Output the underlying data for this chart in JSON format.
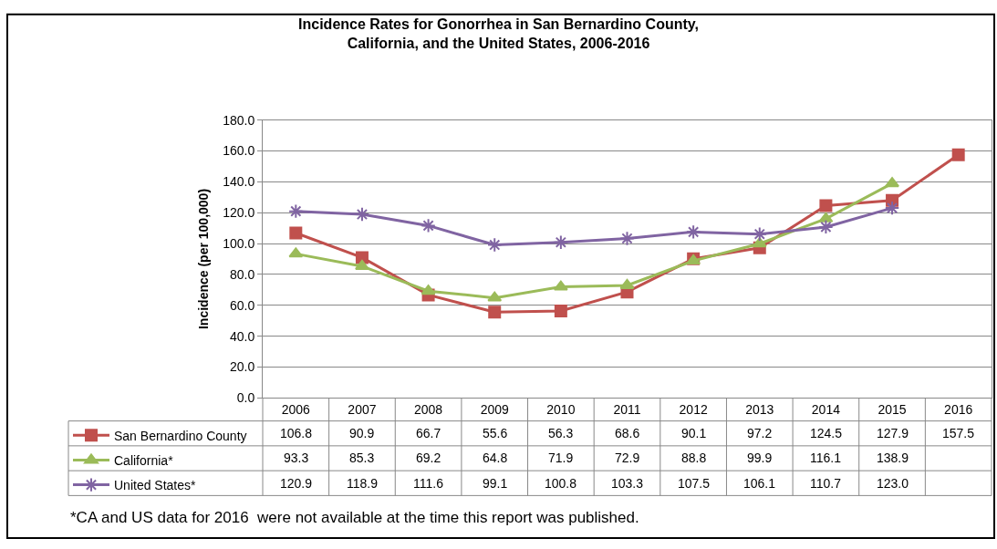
{
  "chart_data": {
    "type": "line",
    "title": "Incidence Rates for Gonorrhea in San Bernardino County,\nCalifornia, and the United States, 2006-2016",
    "ylabel": "Incidence (per 100,000)",
    "categories": [
      "2006",
      "2007",
      "2008",
      "2009",
      "2010",
      "2011",
      "2012",
      "2013",
      "2014",
      "2015",
      "2016"
    ],
    "series": [
      {
        "name": "San Bernardino County",
        "color": "#c0504d",
        "marker": "square",
        "values": [
          106.8,
          90.9,
          66.7,
          55.6,
          56.3,
          68.6,
          90.1,
          97.2,
          124.5,
          127.9,
          157.5
        ],
        "value_labels": [
          "106.8",
          "90.9",
          "66.7",
          "55.6",
          "56.3",
          "68.6",
          "90.1",
          "97.2",
          "124.5",
          "127.9",
          "157.5"
        ]
      },
      {
        "name": "California*",
        "color": "#9bbb59",
        "marker": "triangle",
        "values": [
          93.3,
          85.3,
          69.2,
          64.8,
          71.9,
          72.9,
          88.8,
          99.9,
          116.1,
          138.9,
          null
        ],
        "value_labels": [
          "93.3",
          "85.3",
          "69.2",
          "64.8",
          "71.9",
          "72.9",
          "88.8",
          "99.9",
          "116.1",
          "138.9",
          null
        ]
      },
      {
        "name": "United States*",
        "color": "#8064a2",
        "marker": "cross",
        "values": [
          120.9,
          118.9,
          111.6,
          99.1,
          100.8,
          103.3,
          107.5,
          106.1,
          110.7,
          123.0,
          null
        ],
        "value_labels": [
          "120.9",
          "118.9",
          "111.6",
          "99.1",
          "100.8",
          "103.3",
          "107.5",
          "106.1",
          "110.7",
          "123.0",
          null
        ]
      }
    ],
    "ylim": [
      0,
      180
    ],
    "yticks": [
      {
        "value": 0,
        "label": "0.0"
      },
      {
        "value": 20,
        "label": "20.0"
      },
      {
        "value": 40,
        "label": "40.0"
      },
      {
        "value": 60,
        "label": "60.0"
      },
      {
        "value": 80,
        "label": "80.0"
      },
      {
        "value": 100,
        "label": "100.0"
      },
      {
        "value": 120,
        "label": "120.0"
      },
      {
        "value": 140,
        "label": "140.0"
      },
      {
        "value": 160,
        "label": "160.0"
      },
      {
        "value": 180,
        "label": "180.0"
      }
    ],
    "grid": "y",
    "legend": "bottom",
    "line_style": "solid",
    "annotations": [
      "*CA and US data for 2016  were not available at the time this report was published."
    ]
  }
}
